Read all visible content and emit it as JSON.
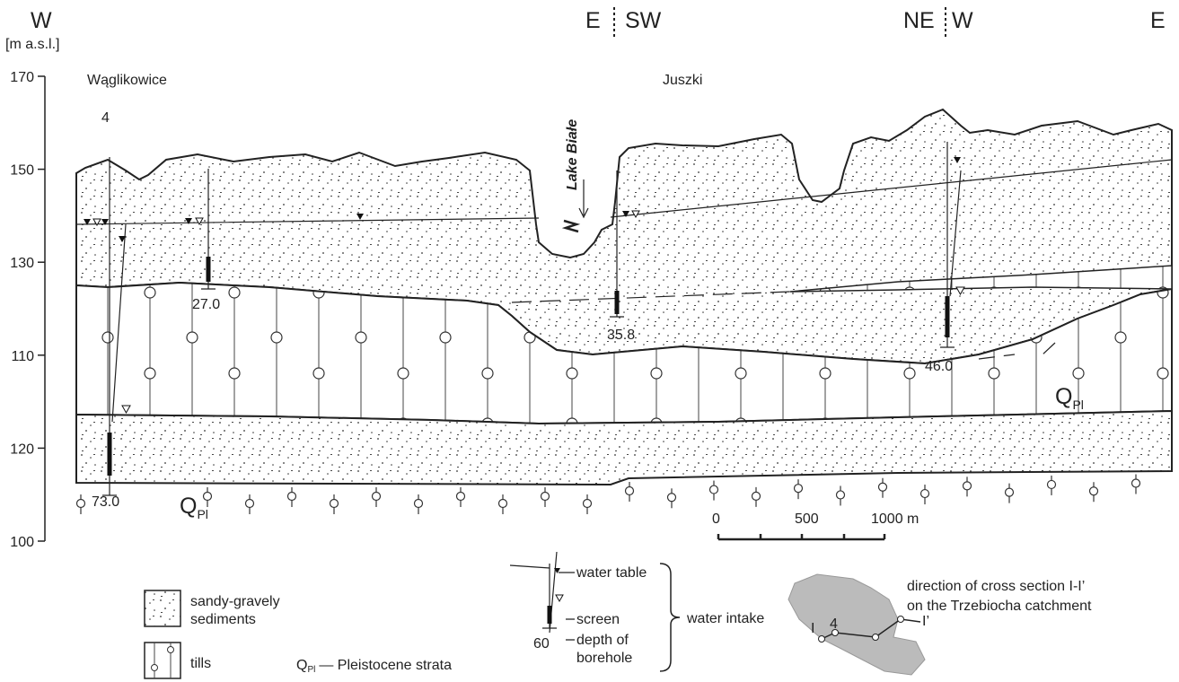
{
  "directions": [
    "W",
    "E",
    "SW",
    "NE",
    "W",
    "E"
  ],
  "axis": {
    "unit": "[m a.s.l.]",
    "ticks": [
      "170",
      "150",
      "130",
      "110",
      "120",
      "100"
    ]
  },
  "places": {
    "left": "Wąglikowice",
    "right": "Juszki",
    "borehole_number": "4",
    "lake": "Lake Białe"
  },
  "depths": [
    "27.0",
    "35.8",
    "46.0",
    "73.0"
  ],
  "strata_symbol": {
    "symbol": "Q",
    "subscript": "Pl"
  },
  "scale": {
    "ticks": [
      "0",
      "500",
      "1000 m"
    ]
  },
  "legend": {
    "sandy": [
      "sandy-gravely",
      "sediments"
    ],
    "tills": "tills",
    "pleistocene": "— Pleistocene strata",
    "water_table": "water table",
    "screen": "screen",
    "depth_example": "60",
    "depth_of_borehole": [
      "depth of",
      "borehole"
    ],
    "water_intake": "water intake",
    "map_text": [
      "direction of cross section I-I’",
      "on the Trzebiocha catchment"
    ],
    "map_labels": [
      "I",
      "4",
      "I’"
    ]
  }
}
